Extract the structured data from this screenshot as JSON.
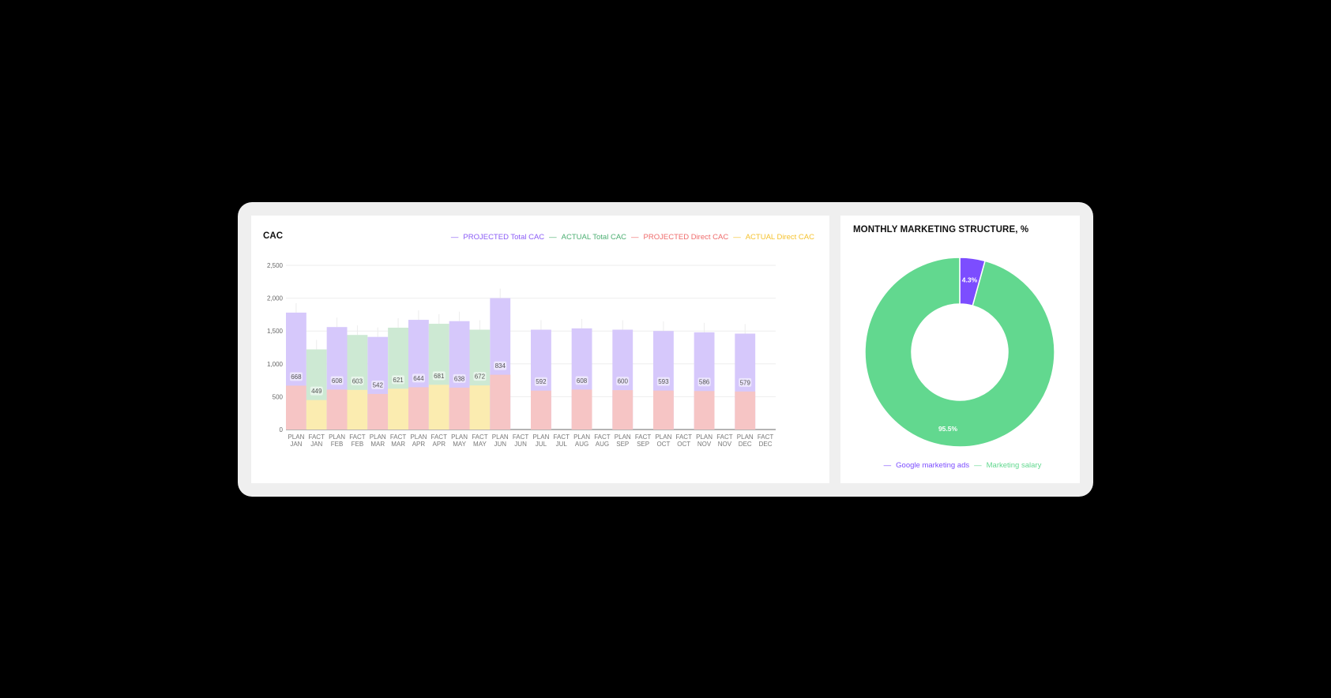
{
  "colors": {
    "projected_total": "#d6c8fb",
    "actual_total": "#cde9d3",
    "projected_direct": "#f6c5c5",
    "actual_direct": "#fbecb0",
    "legend_projected_total": "#8b5cf6",
    "legend_actual_total": "#4caf72",
    "legend_projected_direct": "#ef6b6b",
    "legend_actual_direct": "#f5c22e",
    "pie_ads": "#7c4dff",
    "pie_salary": "#62d88f"
  },
  "cac": {
    "title": "CAC",
    "legend": [
      {
        "label": "PROJECTED Total CAC",
        "color_key": "legend_projected_total"
      },
      {
        "label": "ACTUAL Total CAC",
        "color_key": "legend_actual_total"
      },
      {
        "label": "PROJECTED Direct CAC",
        "color_key": "legend_projected_direct"
      },
      {
        "label": "ACTUAL Direct CAC",
        "color_key": "legend_actual_direct"
      }
    ]
  },
  "pie": {
    "title": "MONTHLY MARKETING STRUCTURE, %",
    "legend": [
      {
        "label": "Google marketing ads",
        "color_key": "pie_ads"
      },
      {
        "label": "Marketing salary",
        "color_key": "pie_salary"
      }
    ]
  },
  "chart_data": [
    {
      "type": "bar",
      "title": "CAC",
      "ylim": [
        0,
        2500
      ],
      "yticks": [
        "0",
        "500",
        "1,000",
        "1,500",
        "2,000",
        "2,500"
      ],
      "categories": [
        "PLAN JAN",
        "FACT JAN",
        "PLAN FEB",
        "FACT FEB",
        "PLAN MAR",
        "FACT MAR",
        "PLAN APR",
        "FACT APR",
        "PLAN MAY",
        "FACT MAY",
        "PLAN JUN",
        "FACT JUN",
        "PLAN JUL",
        "FACT JUL",
        "PLAN AUG",
        "FACT AUG",
        "PLAN SEP",
        "FACT SEP",
        "PLAN OCT",
        "FACT OCT",
        "PLAN NOV",
        "FACT NOV",
        "PLAN DEC",
        "FACT DEC"
      ],
      "series": [
        {
          "name": "PROJECTED Total CAC",
          "values": [
            1780,
            null,
            1560,
            null,
            1410,
            null,
            1670,
            null,
            1650,
            null,
            2000,
            null,
            1520,
            null,
            1540,
            null,
            1520,
            null,
            1500,
            null,
            1480,
            null,
            1460,
            null
          ]
        },
        {
          "name": "ACTUAL Total CAC",
          "values": [
            null,
            1220,
            null,
            1440,
            null,
            1550,
            null,
            1610,
            null,
            1520,
            null,
            null,
            null,
            null,
            null,
            null,
            null,
            null,
            null,
            null,
            null,
            null,
            null,
            null
          ]
        },
        {
          "name": "PROJECTED Direct CAC",
          "values": [
            668,
            null,
            608,
            null,
            542,
            null,
            644,
            null,
            638,
            null,
            834,
            null,
            592,
            null,
            608,
            null,
            600,
            null,
            593,
            null,
            586,
            null,
            579,
            null
          ]
        },
        {
          "name": "ACTUAL Direct CAC",
          "values": [
            null,
            449,
            null,
            603,
            null,
            621,
            null,
            681,
            null,
            672,
            null,
            null,
            null,
            null,
            null,
            null,
            null,
            null,
            null,
            null,
            null,
            null,
            null,
            null
          ]
        }
      ],
      "data_labels": [
        "668",
        "449",
        "608",
        "603",
        "542",
        "621",
        "644",
        "681",
        "638",
        "672",
        "834",
        "",
        "592",
        "",
        "608",
        "",
        "600",
        "",
        "593",
        "",
        "586",
        "",
        "579",
        ""
      ],
      "grid": true
    },
    {
      "type": "pie",
      "title": "MONTHLY MARKETING STRUCTURE, %",
      "slices": [
        {
          "name": "Google marketing ads",
          "value": 4.3,
          "label": "4.3%"
        },
        {
          "name": "Marketing salary",
          "value": 95.5,
          "label": "95.5%"
        }
      ]
    }
  ]
}
